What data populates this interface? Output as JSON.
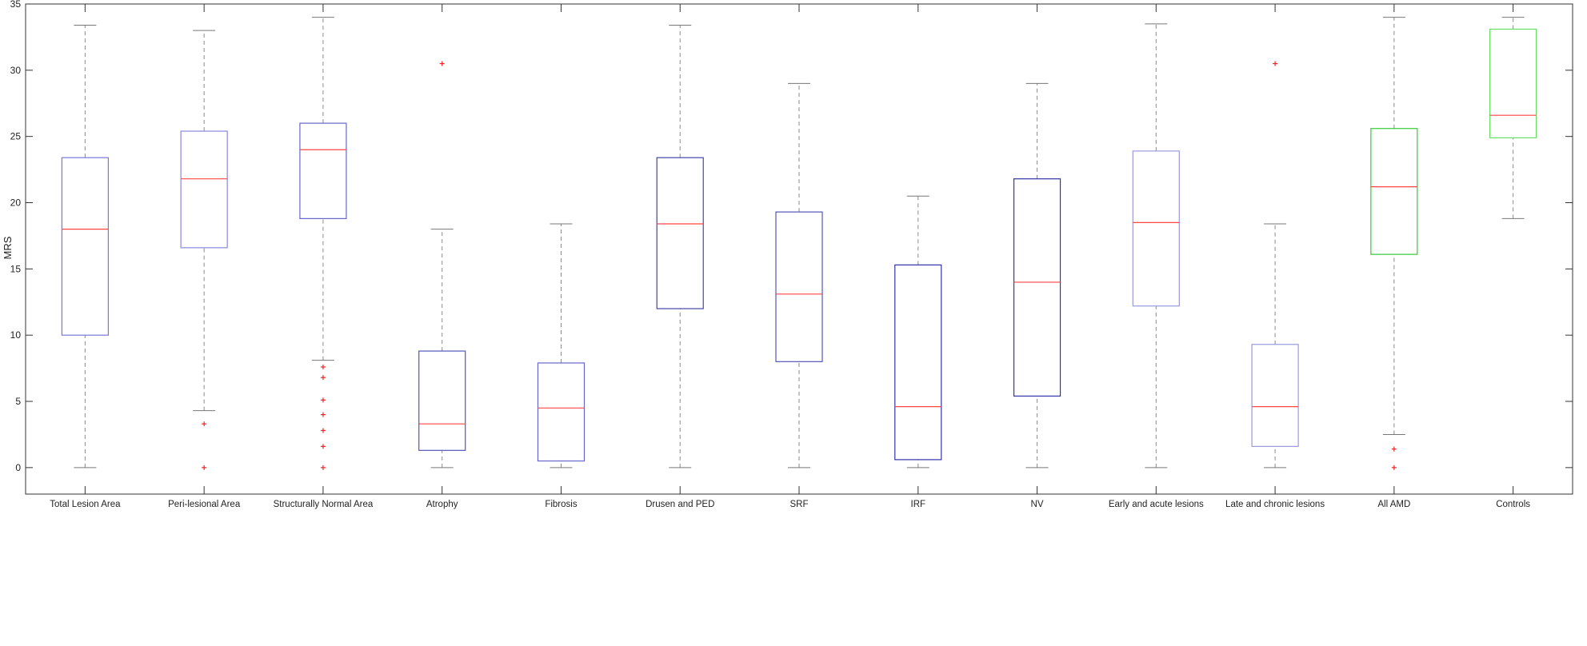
{
  "chart_data": {
    "type": "boxplot",
    "title": "",
    "xlabel": "",
    "ylabel": "MRS",
    "ylim": [
      -2,
      35
    ],
    "yticks": [
      0,
      5,
      10,
      15,
      20,
      25,
      30,
      35
    ],
    "grid": false,
    "legend": "none",
    "categories": [
      "Total Lesion Area",
      "Peri-lesional Area",
      "Structurally Normal Area",
      "Atrophy",
      "Fibrosis",
      "Drusen and PED",
      "SRF",
      "IRF",
      "NV",
      "Early and acute lesions",
      "Late and chronic lesions",
      "All AMD",
      "Controls"
    ],
    "boxes": [
      {
        "whisker_low": 0,
        "q1": 10,
        "median": 18,
        "q3": 23.4,
        "whisker_high": 33.4,
        "outliers": [],
        "color": "#7777dd"
      },
      {
        "whisker_low": 4.3,
        "q1": 16.6,
        "median": 21.8,
        "q3": 25.4,
        "whisker_high": 33,
        "outliers": [
          0,
          3.3
        ],
        "color": "#8888dd"
      },
      {
        "whisker_low": 8.1,
        "q1": 18.8,
        "median": 24,
        "q3": 26,
        "whisker_high": 34,
        "outliers": [
          0,
          1.6,
          2.8,
          4,
          5.1,
          6.8,
          7.6
        ],
        "color": "#6666cc"
      },
      {
        "whisker_low": 0,
        "q1": 1.3,
        "median": 3.3,
        "q3": 8.8,
        "whisker_high": 18,
        "outliers": [
          30.5
        ],
        "color": "#5555bb"
      },
      {
        "whisker_low": 0,
        "q1": 0.5,
        "median": 4.5,
        "q3": 7.9,
        "whisker_high": 18.4,
        "outliers": [],
        "color": "#6666cc"
      },
      {
        "whisker_low": 0,
        "q1": 12,
        "median": 18.4,
        "q3": 23.4,
        "whisker_high": 33.4,
        "outliers": [],
        "color": "#4444aa"
      },
      {
        "whisker_low": 0,
        "q1": 8,
        "median": 13.1,
        "q3": 19.3,
        "whisker_high": 29,
        "outliers": [],
        "color": "#5555bb"
      },
      {
        "whisker_low": 0,
        "q1": 0.6,
        "median": 4.6,
        "q3": 15.3,
        "whisker_high": 20.5,
        "outliers": [],
        "color": "#3333aa"
      },
      {
        "whisker_low": 0,
        "q1": 5.4,
        "median": 14,
        "q3": 21.8,
        "whisker_high": 29,
        "outliers": [],
        "color": "#3333aa"
      },
      {
        "whisker_low": 0,
        "q1": 12.2,
        "median": 18.5,
        "q3": 23.9,
        "whisker_high": 33.5,
        "outliers": [],
        "color": "#9999dd"
      },
      {
        "whisker_low": 0,
        "q1": 1.6,
        "median": 4.6,
        "q3": 9.3,
        "whisker_high": 18.4,
        "outliers": [
          30.5
        ],
        "color": "#9999dd"
      },
      {
        "whisker_low": 2.5,
        "q1": 16.1,
        "median": 21.2,
        "q3": 25.6,
        "whisker_high": 34,
        "outliers": [
          0,
          1.4
        ],
        "color": "#33cc33"
      },
      {
        "whisker_low": 18.8,
        "q1": 24.9,
        "median": 26.6,
        "q3": 33.1,
        "whisker_high": 34,
        "outliers": [],
        "color": "#66dd66"
      }
    ],
    "median_color": "#ff4444",
    "outlier_color": "#ee2222"
  }
}
